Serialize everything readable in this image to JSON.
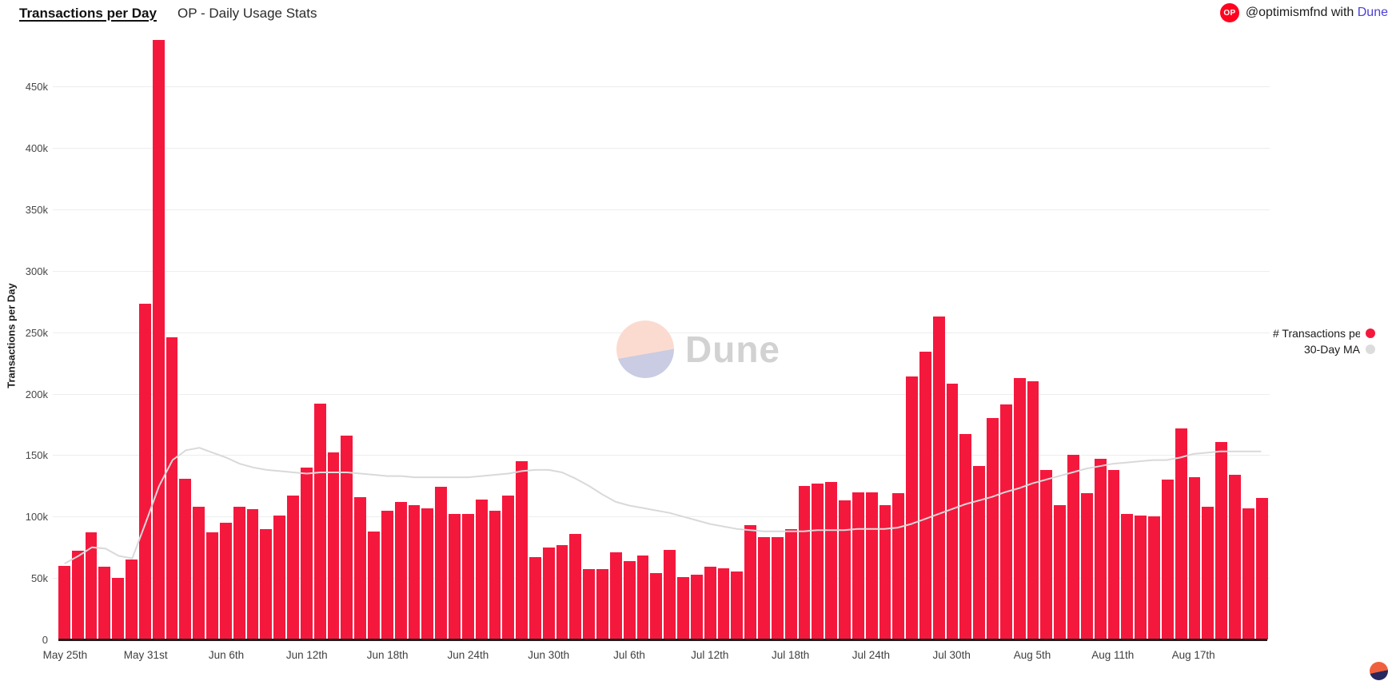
{
  "header": {
    "title": "Transactions per Day",
    "subtitle": "OP - Daily Usage Stats",
    "badge_label": "OP",
    "attribution_handle": "@optimismfnd",
    "attribution_middle": "with",
    "attribution_brand": "Dune"
  },
  "watermark": {
    "brand": "Dune"
  },
  "legend": [
    {
      "label": "# Transactions per",
      "color": "#f5183d"
    },
    {
      "label": "30-Day MA",
      "color": "#dcdcdc"
    }
  ],
  "colors": {
    "bar": "#f5183d",
    "ma_line": "#d9d9d9",
    "badge_bg": "#ff0420",
    "link": "#4c40d8",
    "gridline": "#ededed",
    "axis_line": "#211c1c",
    "watermark_text": "#d2d2d2",
    "watermark_circle_top": "#fbdbd0",
    "watermark_circle_bottom": "#c9cce2",
    "corner_logo_top": "#f1603c",
    "corner_logo_bottom": "#28275e"
  },
  "chart_data": {
    "type": "bar",
    "title": "OP - Daily Usage Stats",
    "ylabel": "Transactions per Day",
    "unit": "thousands (k)",
    "ylim": [
      0,
      500
    ],
    "grid": "horizontal",
    "legend_position": "right",
    "ytick_values": [
      0,
      50,
      100,
      150,
      200,
      250,
      300,
      350,
      400,
      450
    ],
    "ytick_labels": [
      "0",
      "50k",
      "100k",
      "150k",
      "200k",
      "250k",
      "300k",
      "350k",
      "400k",
      "450k"
    ],
    "xtick_every": 6,
    "xtick_labels": [
      "May 25th",
      "May 31st",
      "Jun 6th",
      "Jun 12th",
      "Jun 18th",
      "Jun 24th",
      "Jun 30th",
      "Jul 6th",
      "Jul 12th",
      "Jul 18th",
      "Jul 24th",
      "Jul 30th",
      "Aug 5th",
      "Aug 11th",
      "Aug 17th"
    ],
    "dates": [
      "May 25",
      "May 26",
      "May 27",
      "May 28",
      "May 29",
      "May 30",
      "May 31",
      "Jun 1",
      "Jun 2",
      "Jun 3",
      "Jun 4",
      "Jun 5",
      "Jun 6",
      "Jun 7",
      "Jun 8",
      "Jun 9",
      "Jun 10",
      "Jun 11",
      "Jun 12",
      "Jun 13",
      "Jun 14",
      "Jun 15",
      "Jun 16",
      "Jun 17",
      "Jun 18",
      "Jun 19",
      "Jun 20",
      "Jun 21",
      "Jun 22",
      "Jun 23",
      "Jun 24",
      "Jun 25",
      "Jun 26",
      "Jun 27",
      "Jun 28",
      "Jun 29",
      "Jun 30",
      "Jul 1",
      "Jul 2",
      "Jul 3",
      "Jul 4",
      "Jul 5",
      "Jul 6",
      "Jul 7",
      "Jul 8",
      "Jul 9",
      "Jul 10",
      "Jul 11",
      "Jul 12",
      "Jul 13",
      "Jul 14",
      "Jul 15",
      "Jul 16",
      "Jul 17",
      "Jul 18",
      "Jul 19",
      "Jul 20",
      "Jul 21",
      "Jul 22",
      "Jul 23",
      "Jul 24",
      "Jul 25",
      "Jul 26",
      "Jul 27",
      "Jul 28",
      "Jul 29",
      "Jul 30",
      "Jul 31",
      "Aug 1",
      "Aug 2",
      "Aug 3",
      "Aug 4",
      "Aug 5",
      "Aug 6",
      "Aug 7",
      "Aug 8",
      "Aug 9",
      "Aug 10",
      "Aug 11",
      "Aug 12",
      "Aug 13",
      "Aug 14",
      "Aug 15",
      "Aug 16",
      "Aug 17",
      "Aug 18",
      "Aug 19",
      "Aug 20",
      "Aug 21",
      "Aug 22"
    ],
    "series": [
      {
        "name": "# Transactions per Day",
        "type": "bar",
        "color": "#f5183d",
        "values_k": [
          60,
          72,
          87,
          59,
          50,
          65,
          273,
          488,
          246,
          131,
          108,
          87,
          95,
          108,
          106,
          90,
          101,
          117,
          140,
          192,
          152,
          166,
          116,
          88,
          105,
          112,
          109,
          107,
          124,
          102,
          102,
          114,
          105,
          117,
          145,
          67,
          75,
          77,
          86,
          57,
          57,
          71,
          64,
          68,
          54,
          73,
          51,
          53,
          59,
          58,
          55,
          93,
          83,
          83,
          90,
          125,
          127,
          128,
          113,
          120,
          120,
          109,
          119,
          214,
          234,
          263,
          208,
          167,
          141,
          180,
          191,
          213,
          210,
          138,
          109,
          150,
          119,
          147,
          138,
          102,
          101,
          100,
          130,
          172,
          132,
          108,
          161,
          134,
          107,
          115
        ]
      },
      {
        "name": "30-Day MA",
        "type": "line",
        "color": "#d9d9d9",
        "values_k": [
          62,
          68,
          75,
          74,
          68,
          66,
          95,
          125,
          146,
          154,
          156,
          152,
          148,
          143,
          140,
          138,
          137,
          136,
          135,
          136,
          136,
          136,
          135,
          134,
          133,
          133,
          132,
          132,
          132,
          132,
          132,
          133,
          134,
          135,
          137,
          138,
          138,
          136,
          131,
          125,
          118,
          112,
          109,
          107,
          105,
          103,
          100,
          97,
          94,
          92,
          90,
          89,
          88,
          88,
          88,
          88,
          89,
          89,
          89,
          90,
          90,
          90,
          91,
          94,
          98,
          102,
          106,
          110,
          113,
          116,
          120,
          123,
          127,
          130,
          133,
          136,
          139,
          141,
          143,
          144,
          145,
          146,
          146,
          148,
          151,
          152,
          153,
          153,
          153,
          153
        ]
      }
    ]
  }
}
